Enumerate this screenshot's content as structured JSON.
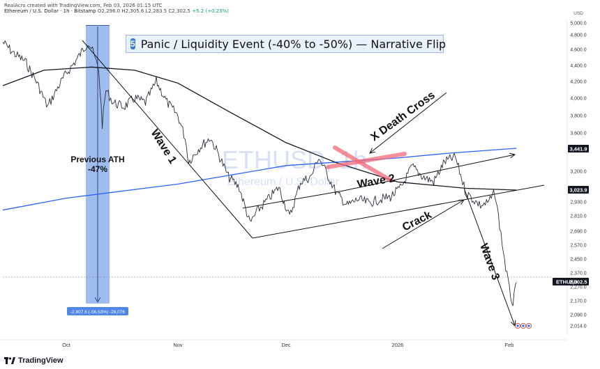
{
  "header": {
    "credit": "RealAcro created with TradingView.com, Feb 03, 2026 01:15 UTC",
    "symbol": "Ethereum / U.S. Dollar · 1h · Bitstamp",
    "ohlc": "O2,296.0 H2,305.6 L2,283.5 C2,302.5",
    "change": "+5.2 (+0.23%)"
  },
  "banner": {
    "number": "5",
    "text": "Panic / Liquidity Event (-40% to -50%) — Narrative Flip"
  },
  "watermark": {
    "ticker": "ETHUSD, 1h",
    "name": "Ethereum / U.S. Dollar"
  },
  "annotations": {
    "previous_ath": "Previous ATH",
    "ath_pct": "-47%",
    "wave1": "Wave 1",
    "wave2": "Wave 2",
    "wave3": "Wave 3",
    "death_cross": "X Death Cross",
    "crack": "Crack",
    "measure_label": "-2,807.6 (-56.53%) -28,076"
  },
  "price_tags": {
    "ma_upper": "3,441.9",
    "ma_lower": "3,023.9",
    "symbol": "ETHUSD",
    "last": "2,302.5"
  },
  "footer": {
    "brand": "TradingView"
  },
  "colors": {
    "candle": "#2a2e39",
    "ma_blue": "#2962ff",
    "ma_black": "#131722",
    "highlight_box": "#7ea6e8",
    "death_cross_mark": "#ef6b7b",
    "price_tag": "#131722"
  },
  "chart_data": {
    "type": "line",
    "title": "",
    "xlabel": "",
    "ylabel": "USD",
    "currency": "USD",
    "x_ticks": [
      "Oct",
      "Nov",
      "Dec",
      "2026",
      "Feb"
    ],
    "y_ticks": [
      2014.0,
      2090.0,
      2170.0,
      2270.0,
      2370.0,
      2450.0,
      2570.0,
      2690.0,
      2810.0,
      2930.0,
      3023.9,
      3200.0,
      3441.9,
      3600.0,
      3800.0,
      4000.0,
      4200.0,
      4400.0,
      4600.0,
      4800.0,
      5000.0
    ],
    "ylim": [
      1950,
      5080
    ],
    "grid": false,
    "series": [
      {
        "values": [
          [
            "Sep 14",
            4700
          ],
          [
            "Sep 17",
            4550
          ],
          [
            "Sep 20",
            4450
          ],
          [
            "Sep 23",
            4200
          ],
          [
            "Sep 26",
            3900
          ],
          [
            "Sep 29",
            4150
          ],
          [
            "Oct 1",
            4300
          ],
          [
            "Oct 4",
            4480
          ],
          [
            "Oct 7",
            4700
          ],
          [
            "Oct 8",
            4620
          ],
          [
            "Oct 10",
            4350
          ],
          [
            "Oct 11",
            3700
          ],
          [
            "Oct 12",
            4100
          ],
          [
            "Oct 14",
            3950
          ],
          [
            "Oct 17",
            3900
          ],
          [
            "Oct 20",
            4000
          ],
          [
            "Oct 23",
            3950
          ],
          [
            "Oct 26",
            4200
          ],
          [
            "Oct 29",
            3950
          ],
          [
            "Nov 1",
            3800
          ],
          [
            "Nov 3",
            3550
          ],
          [
            "Nov 4",
            3300
          ],
          [
            "Nov 7",
            3450
          ],
          [
            "Nov 10",
            3550
          ],
          [
            "Nov 12",
            3400
          ],
          [
            "Nov 15",
            3150
          ],
          [
            "Nov 18",
            3050
          ],
          [
            "Nov 21",
            2750
          ],
          [
            "Nov 23",
            2850
          ],
          [
            "Nov 26",
            2950
          ],
          [
            "Nov 29",
            3050
          ],
          [
            "Dec 2",
            2800
          ],
          [
            "Dec 5",
            3100
          ],
          [
            "Dec 8",
            3150
          ],
          [
            "Dec 10",
            3350
          ],
          [
            "Dec 12",
            3200
          ],
          [
            "Dec 15",
            3000
          ],
          [
            "Dec 18",
            2900
          ],
          [
            "Dec 21",
            2950
          ],
          [
            "Dec 24",
            2920
          ],
          [
            "Dec 27",
            2950
          ],
          [
            "Dec 30",
            2970
          ],
          [
            "Jan 2",
            3050
          ],
          [
            "Jan 5",
            3250
          ],
          [
            "Jan 8",
            3150
          ],
          [
            "Jan 11",
            3100
          ],
          [
            "Jan 14",
            3300
          ],
          [
            "Jan 17",
            3350
          ],
          [
            "Jan 20",
            3000
          ],
          [
            "Jan 22",
            2950
          ],
          [
            "Jan 24",
            2900
          ],
          [
            "Jan 26",
            2920
          ],
          [
            "Jan 28",
            3000
          ],
          [
            "Jan 29",
            2800
          ],
          [
            "Jan 31",
            2400
          ],
          [
            "Feb 1",
            2250
          ],
          [
            "Feb 2",
            2150
          ],
          [
            "Feb 3",
            2302.5
          ]
        ]
      },
      {
        "values": [
          [
            "Sep 14",
            2860
          ],
          [
            "Oct 1",
            2960
          ],
          [
            "Nov 1",
            3080
          ],
          [
            "Dec 1",
            3260
          ],
          [
            "Jan 1",
            3340
          ],
          [
            "Jan 15",
            3390
          ],
          [
            "Feb 3",
            3441.9
          ]
        ]
      },
      {
        "values": [
          [
            "Sep 14",
            4150
          ],
          [
            "Sep 25",
            4340
          ],
          [
            "Oct 8",
            4380
          ],
          [
            "Oct 20",
            4340
          ],
          [
            "Nov 1",
            4180
          ],
          [
            "Nov 15",
            3850
          ],
          [
            "Dec 1",
            3500
          ],
          [
            "Dec 15",
            3290
          ],
          [
            "Jan 1",
            3100
          ],
          [
            "Jan 20",
            3040
          ],
          [
            "Feb 3",
            3023.9
          ]
        ]
      }
    ],
    "annotation_values": {
      "measure_change": -2807.6,
      "measure_percent": -56.53,
      "ath_drawdown_percent": -47
    }
  }
}
